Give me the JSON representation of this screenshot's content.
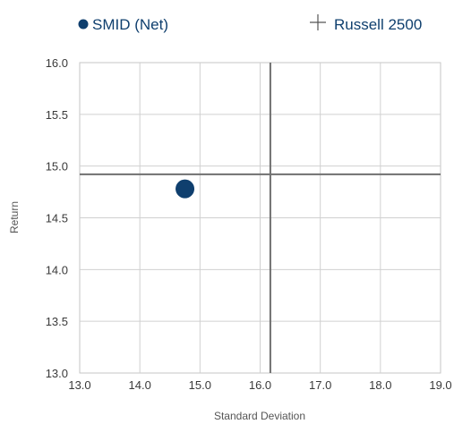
{
  "chart_data": {
    "type": "scatter",
    "title": "",
    "xlabel": "Standard Deviation",
    "ylabel": "Return",
    "xlim": [
      13.0,
      19.0
    ],
    "ylim": [
      13.0,
      16.0
    ],
    "x_ticks": [
      "13.0",
      "14.0",
      "15.0",
      "16.0",
      "17.0",
      "18.0",
      "19.0"
    ],
    "y_ticks": [
      "13.0",
      "13.5",
      "14.0",
      "14.5",
      "15.0",
      "15.5",
      "16.0"
    ],
    "grid": true,
    "legend_position": "top",
    "series": [
      {
        "name": "SMID (Net)",
        "marker": "circle",
        "color": "#0f3f6e",
        "x": 14.75,
        "y": 14.78
      },
      {
        "name": "Russell 2500",
        "marker": "crosshair",
        "color": "#707070",
        "x": 16.17,
        "y": 14.92
      }
    ],
    "legend_marker_colors": {
      "circle": "#0f3f6e",
      "cross": "#555555"
    }
  }
}
